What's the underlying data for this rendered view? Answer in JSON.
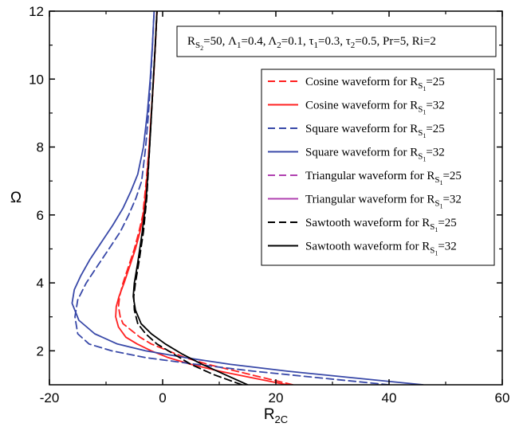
{
  "chart_data": {
    "type": "line",
    "title": "",
    "xlabel": "R",
    "xlabel_sub": "2C",
    "ylabel": "Ω",
    "xlim": [
      -20,
      60
    ],
    "ylim": [
      1,
      12
    ],
    "xticks": [
      -20,
      0,
      20,
      40,
      60
    ],
    "yticks": [
      2,
      4,
      6,
      8,
      10,
      12
    ],
    "grid": false,
    "legend_position": "top-right",
    "parameters": {
      "parts": [
        {
          "text": "R",
          "sub": "S",
          "subsub": "2",
          "after": "=50, "
        },
        {
          "text": "Λ",
          "sub": "1",
          "subsub": "",
          "after": "=0.4, "
        },
        {
          "text": "Λ",
          "sub": "2",
          "subsub": "",
          "after": "=0.1, "
        },
        {
          "text": "τ",
          "sub": "1",
          "subsub": "",
          "after": "=0.3, "
        },
        {
          "text": "τ",
          "sub": "2",
          "subsub": "",
          "after": "=0.5, Pr=5, Ri=2"
        }
      ]
    },
    "series": [
      {
        "name_main": "Cosine waveform for R",
        "name_sub": "S",
        "name_subsub": "1",
        "name_suffix": "=25",
        "color": "#ff2020",
        "dash": true,
        "x": [
          23,
          18,
          13,
          8,
          4,
          1,
          -2,
          -4,
          -5.5,
          -7,
          -7.5,
          -7.8,
          -7.6,
          -7,
          -6,
          -5,
          -4.2,
          -3.5,
          -2.9,
          -2.4,
          -2,
          -1.6,
          -1.3,
          -1
        ],
        "y": [
          1,
          1.2,
          1.4,
          1.6,
          1.8,
          2,
          2.2,
          2.4,
          2.6,
          2.8,
          3,
          3.3,
          3.6,
          4,
          4.5,
          5,
          5.5,
          6,
          7,
          8,
          9,
          10,
          11,
          12
        ]
      },
      {
        "name_main": "Cosine waveform for R",
        "name_sub": "S",
        "name_subsub": "1",
        "name_suffix": "=32",
        "color": "#ff2020",
        "dash": false,
        "x": [
          22,
          16,
          10,
          5,
          1,
          -2,
          -4.5,
          -6.5,
          -7.8,
          -8.3,
          -8.2,
          -7.7,
          -6.8,
          -5.8,
          -4.8,
          -4,
          -3.4,
          -2.8,
          -2.4,
          -2,
          -1.6,
          -1.3,
          -1
        ],
        "y": [
          1,
          1.2,
          1.4,
          1.6,
          1.8,
          2,
          2.2,
          2.4,
          2.7,
          3,
          3.3,
          3.6,
          4,
          4.5,
          5,
          5.5,
          6,
          7,
          8,
          9,
          10,
          11,
          12
        ]
      },
      {
        "name_main": "Square waveform for R",
        "name_sub": "S",
        "name_subsub": "1",
        "name_suffix": "=25",
        "color": "#3848a8",
        "dash": true,
        "x": [
          40,
          28,
          16,
          6,
          -3,
          -9,
          -13,
          -15,
          -15.5,
          -15,
          -13.5,
          -11.5,
          -9.5,
          -7.5,
          -6,
          -4.7,
          -3.7,
          -3,
          -2.5,
          -2.1,
          -1.8,
          -1.5
        ],
        "y": [
          1,
          1.2,
          1.4,
          1.6,
          1.8,
          2,
          2.2,
          2.5,
          3,
          3.5,
          4,
          4.5,
          5,
          5.5,
          6,
          6.5,
          7,
          8,
          9,
          10,
          11,
          12
        ]
      },
      {
        "name_main": "Square waveform for R",
        "name_sub": "S",
        "name_subsub": "1",
        "name_suffix": "=32",
        "color": "#3848a8",
        "dash": false,
        "x": [
          46,
          34,
          22,
          12,
          4,
          -3,
          -8,
          -12,
          -14.8,
          -16,
          -15.6,
          -14.5,
          -12.8,
          -10.8,
          -8.8,
          -7,
          -5.6,
          -4.4,
          -3.4,
          -2.7,
          -2.2,
          -1.8,
          -1.5
        ],
        "y": [
          1,
          1.2,
          1.4,
          1.6,
          1.8,
          2,
          2.2,
          2.5,
          2.9,
          3.4,
          3.8,
          4.2,
          4.7,
          5.2,
          5.7,
          6.2,
          6.7,
          7.2,
          8,
          9,
          10,
          11,
          12
        ]
      },
      {
        "name_main": "Triangular waveform for R",
        "name_sub": "S",
        "name_subsub": "1",
        "name_suffix": "=25",
        "color": "#b040b0",
        "dash": true,
        "x": [],
        "y": []
      },
      {
        "name_main": "Triangular waveform for R",
        "name_sub": "S",
        "name_subsub": "1",
        "name_suffix": "=32",
        "color": "#b040b0",
        "dash": false,
        "x": [],
        "y": []
      },
      {
        "name_main": "Sawtooth waveform for R",
        "name_sub": "S",
        "name_subsub": "1",
        "name_suffix": "=25",
        "color": "#000000",
        "dash": true,
        "x": [
          14,
          9,
          5,
          2,
          -1,
          -3,
          -4.4,
          -5,
          -5.1,
          -4.8,
          -4.2,
          -3.4,
          -2.8,
          -2.3,
          -1.8,
          -1.3,
          -1
        ],
        "y": [
          1,
          1.3,
          1.6,
          1.9,
          2.2,
          2.5,
          2.8,
          3.2,
          3.6,
          4,
          4.6,
          5.5,
          6.5,
          8,
          9.5,
          11,
          12
        ]
      },
      {
        "name_main": "Sawtooth waveform for R",
        "name_sub": "S",
        "name_subsub": "1",
        "name_suffix": "=32",
        "color": "#000000",
        "dash": false,
        "x": [
          15,
          11,
          7,
          3.5,
          0.5,
          -2,
          -3.8,
          -4.8,
          -5.2,
          -5,
          -4.4,
          -3.6,
          -2.9,
          -2.3,
          -1.8,
          -1.3,
          -1
        ],
        "y": [
          1,
          1.3,
          1.6,
          1.9,
          2.2,
          2.5,
          2.8,
          3.2,
          3.6,
          4,
          4.6,
          5.5,
          6.5,
          8,
          9.5,
          11,
          12
        ]
      }
    ]
  }
}
